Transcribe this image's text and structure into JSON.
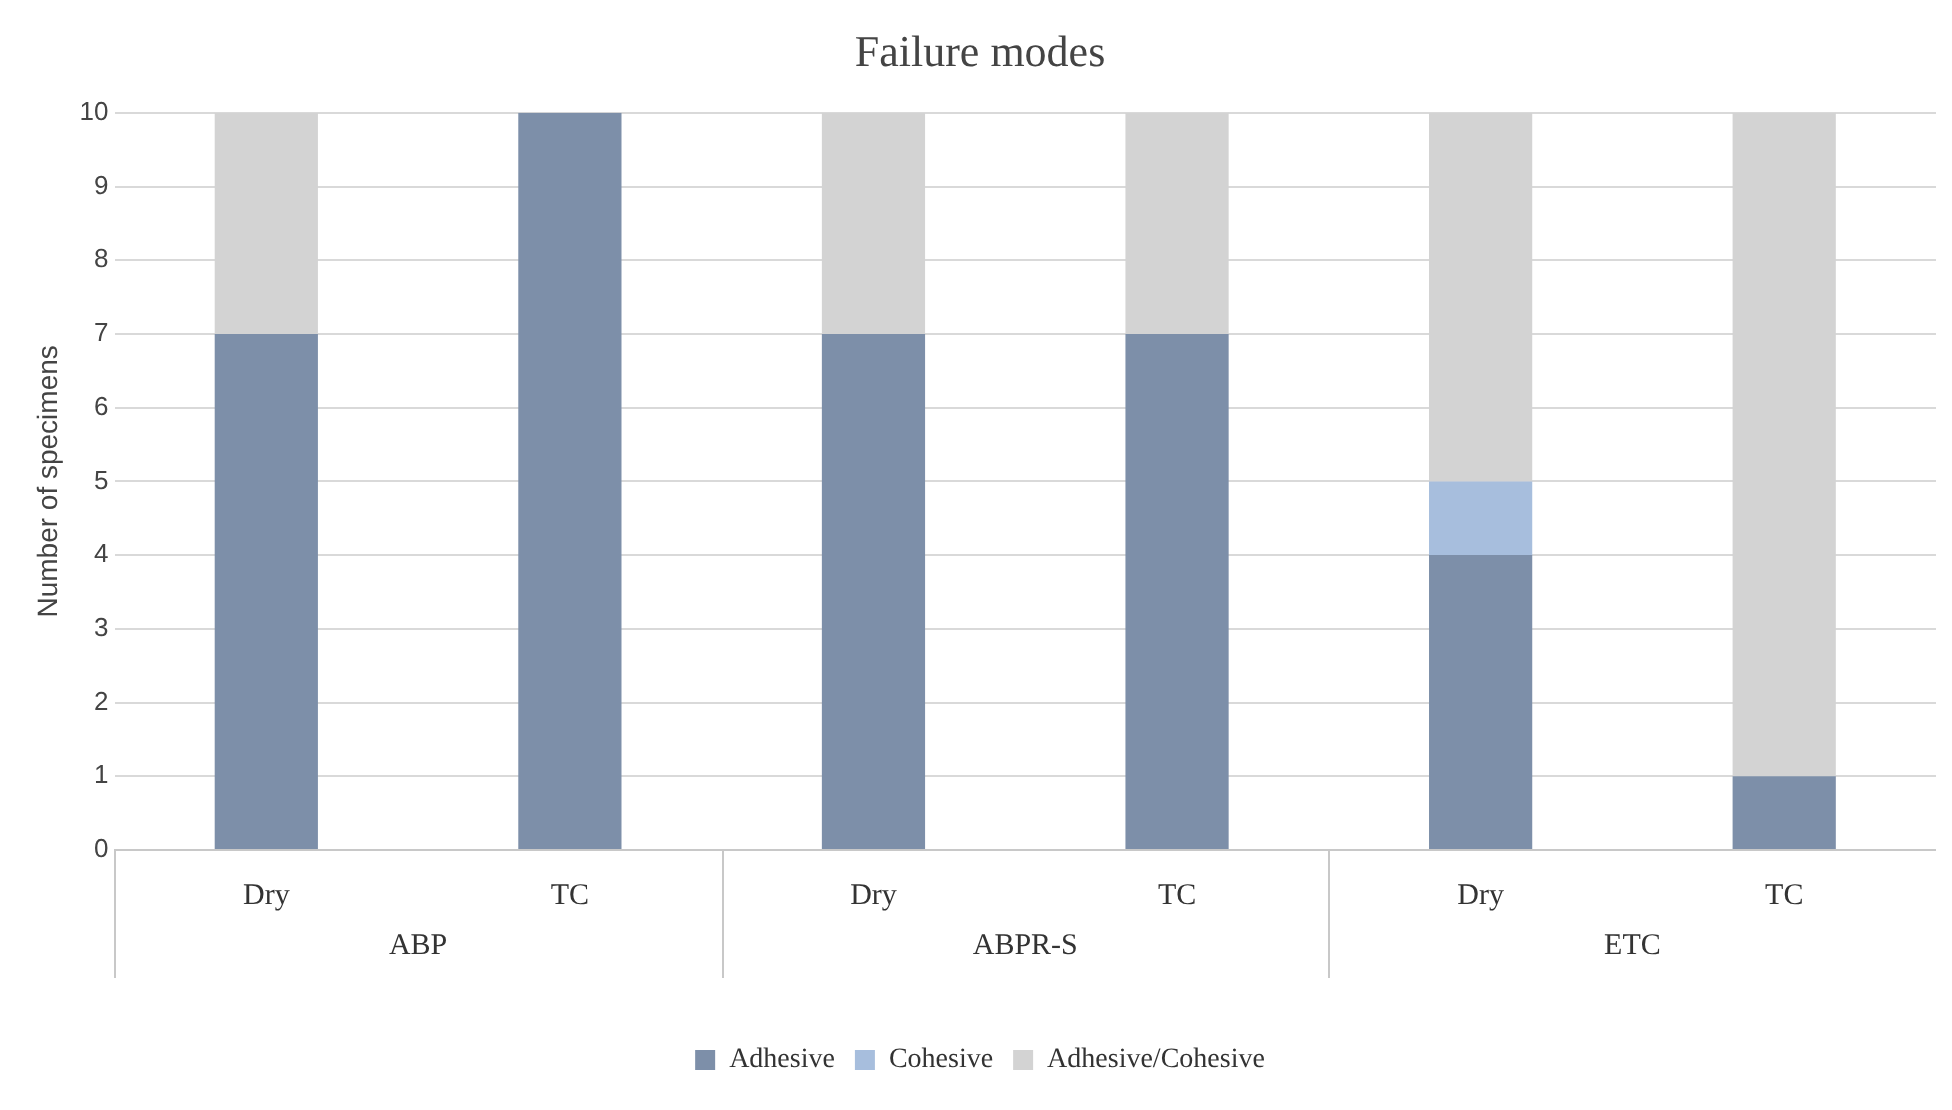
{
  "chart_data": {
    "type": "bar",
    "title": "Failure modes",
    "ylabel": "Number of specimens",
    "categories": [
      "Dry",
      "TC",
      "Dry",
      "TC",
      "Dry",
      "TC"
    ],
    "annotations": [
      "ABP",
      "ABPR-S",
      "ETC"
    ],
    "series": [
      {
        "name": "Adhesive",
        "color": "#7d8fa9",
        "values": [
          7,
          10,
          7,
          7,
          4,
          1
        ]
      },
      {
        "name": "Cohesive",
        "color": "#a7bedd",
        "values": [
          0,
          0,
          0,
          0,
          1,
          0
        ]
      },
      {
        "name": "Adhesive/Cohesive",
        "color": "#d3d3d3",
        "values": [
          3,
          0,
          3,
          3,
          5,
          9
        ]
      }
    ],
    "stacked": true,
    "ylim": [
      0,
      10
    ],
    "yticks": [
      0,
      1,
      2,
      3,
      4,
      5,
      6,
      7,
      8,
      9,
      10
    ],
    "grid": "y",
    "legend": "bottom"
  }
}
